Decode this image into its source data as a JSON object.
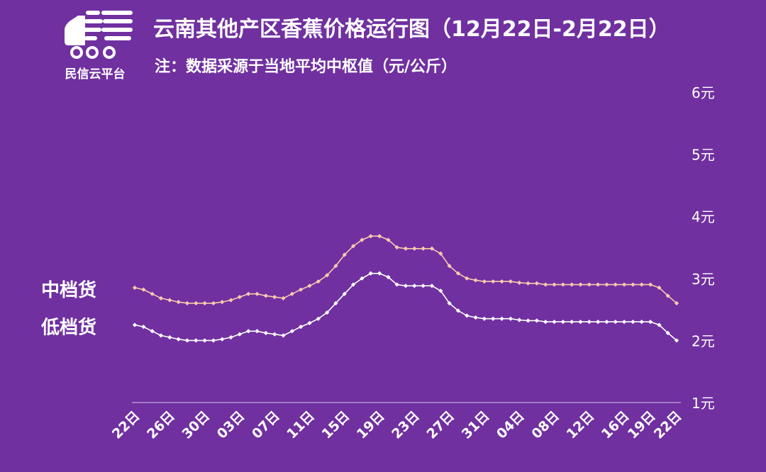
{
  "header": {
    "logo_text": "民信云平台",
    "title": "云南其他产区香蕉价格运行图（12月22日-2月22日）",
    "subtitle": "注：数据采源于当地平均中枢值（元/公斤）"
  },
  "colors": {
    "background": "#7030a0",
    "mid_series": "#f8cbad",
    "low_series": "#ffffff",
    "axis": "#d9c6ea"
  },
  "chart_data": {
    "type": "line",
    "title": "云南其他产区香蕉价格运行图（12月22日-2月22日）",
    "ylabel": "",
    "xlabel": "",
    "ylim": [
      1,
      6
    ],
    "y_ticks": [
      1,
      2,
      3,
      4,
      5,
      6
    ],
    "y_tick_labels": [
      "1元",
      "2元",
      "3元",
      "4元",
      "5元",
      "6元"
    ],
    "y_axis_position": "right",
    "grid": false,
    "x_tick_labels": [
      "22日",
      "26日",
      "30日",
      "03日",
      "07日",
      "11日",
      "15日",
      "19日",
      "23日",
      "27日",
      "31日",
      "04日",
      "08日",
      "12日",
      "16日",
      "19日",
      "22日"
    ],
    "x_tick_indices": [
      0,
      4,
      8,
      12,
      16,
      20,
      24,
      28,
      32,
      36,
      40,
      44,
      48,
      52,
      56,
      59,
      62
    ],
    "series": [
      {
        "name": "中档货",
        "values": [
          2.85,
          2.82,
          2.75,
          2.68,
          2.65,
          2.62,
          2.6,
          2.6,
          2.6,
          2.6,
          2.62,
          2.65,
          2.7,
          2.75,
          2.75,
          2.72,
          2.7,
          2.68,
          2.75,
          2.82,
          2.88,
          2.95,
          3.05,
          3.2,
          3.38,
          3.52,
          3.62,
          3.68,
          3.68,
          3.62,
          3.5,
          3.48,
          3.48,
          3.48,
          3.48,
          3.4,
          3.2,
          3.08,
          3.0,
          2.97,
          2.95,
          2.95,
          2.95,
          2.95,
          2.93,
          2.92,
          2.92,
          2.9,
          2.9,
          2.9,
          2.9,
          2.9,
          2.9,
          2.9,
          2.9,
          2.9,
          2.9,
          2.9,
          2.9,
          2.9,
          2.85,
          2.72,
          2.6
        ]
      },
      {
        "name": "低档货",
        "values": [
          2.25,
          2.22,
          2.15,
          2.08,
          2.05,
          2.02,
          2.0,
          2.0,
          2.0,
          2.0,
          2.02,
          2.05,
          2.1,
          2.15,
          2.15,
          2.12,
          2.1,
          2.08,
          2.15,
          2.22,
          2.28,
          2.35,
          2.45,
          2.6,
          2.75,
          2.9,
          3.0,
          3.08,
          3.08,
          3.02,
          2.9,
          2.88,
          2.88,
          2.88,
          2.88,
          2.8,
          2.6,
          2.48,
          2.4,
          2.37,
          2.35,
          2.35,
          2.35,
          2.35,
          2.33,
          2.32,
          2.32,
          2.3,
          2.3,
          2.3,
          2.3,
          2.3,
          2.3,
          2.3,
          2.3,
          2.3,
          2.3,
          2.3,
          2.3,
          2.3,
          2.25,
          2.12,
          2.0
        ]
      }
    ]
  }
}
